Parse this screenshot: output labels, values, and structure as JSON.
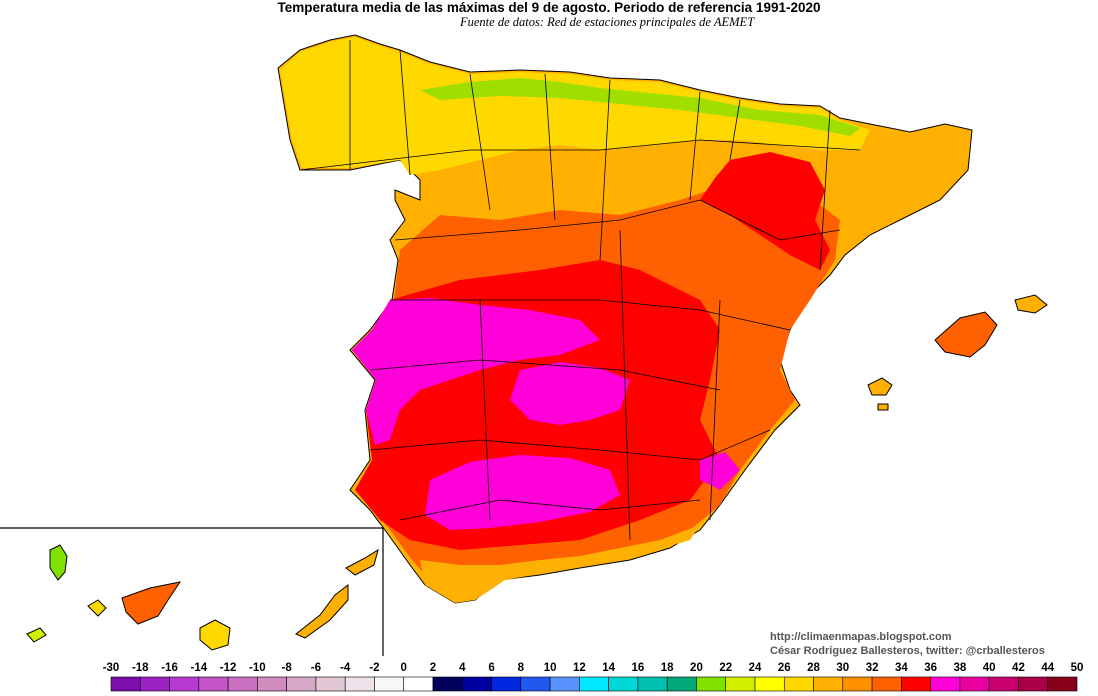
{
  "title": "Temperatura media de las máximas del 9 de agosto. Periodo de referencia 1991-2020",
  "subtitle": "Fuente de datos: Red de estaciones principales de AEMET",
  "credits": {
    "blog": "http://climaenmapas.blogspot.com",
    "author": "César Rodríguez Ballesteros, twitter: @crballesteros"
  },
  "legend": {
    "labels": [
      "-30",
      "-18",
      "-16",
      "-14",
      "-12",
      "-10",
      "-8",
      "-6",
      "-4",
      "-2",
      "0",
      "2",
      "4",
      "6",
      "8",
      "10",
      "12",
      "14",
      "16",
      "18",
      "20",
      "22",
      "24",
      "26",
      "28",
      "30",
      "32",
      "34",
      "36",
      "38",
      "40",
      "42",
      "44",
      "50"
    ],
    "colors": [
      "#7a0fae",
      "#9d22c4",
      "#b93ad0",
      "#c653c8",
      "#c970c0",
      "#cf8cbd",
      "#d6a8c8",
      "#e2c6d6",
      "#eee2ea",
      "#f7f7f7",
      "#ffffff",
      "#00005a",
      "#0000a0",
      "#0028e0",
      "#2058f0",
      "#5a90ff",
      "#00e8ff",
      "#00d8d8",
      "#00c0b0",
      "#00a878",
      "#80e000",
      "#d0f000",
      "#ffff00",
      "#ffd800",
      "#ffb000",
      "#ff9000",
      "#ff6000",
      "#ff0000",
      "#ff00d8",
      "#e800a0",
      "#c8006e",
      "#a80046",
      "#880018"
    ]
  },
  "map_colors": {
    "sea": "#ffffff",
    "warm": "#ffb000",
    "hot": "#ff6000",
    "very_hot": "#ff0000",
    "extreme": "#ff00d8",
    "cool": "#ffd800",
    "mild": "#d0f000",
    "green": "#80e000",
    "teal": "#00c0b0"
  }
}
